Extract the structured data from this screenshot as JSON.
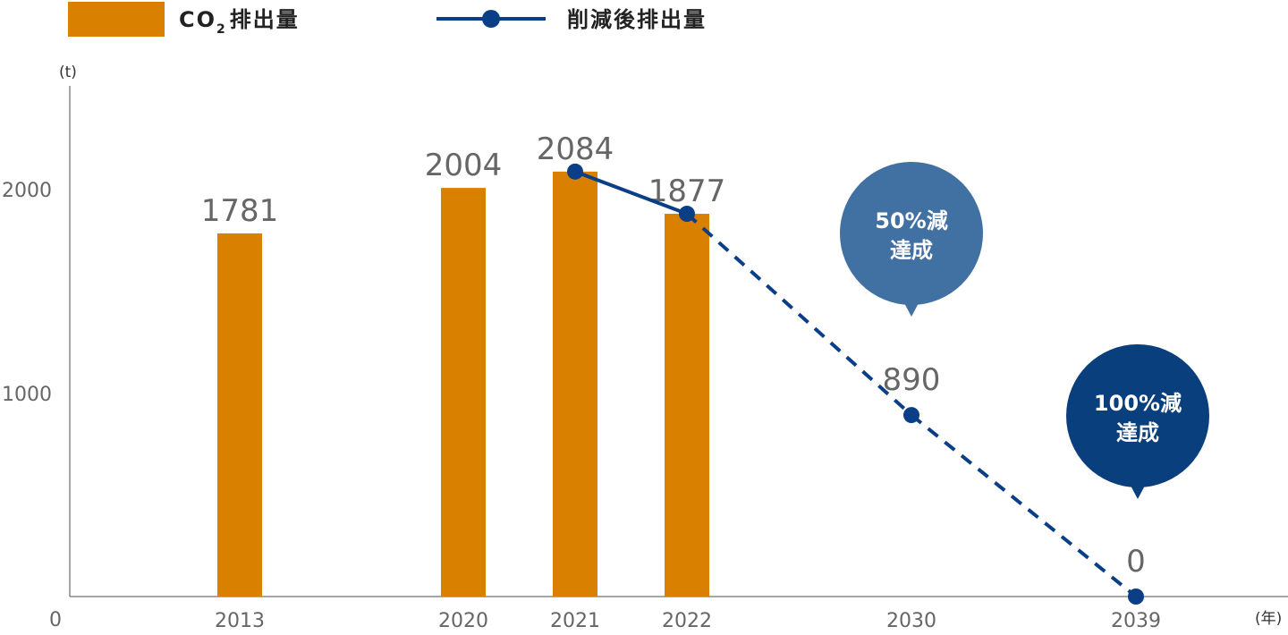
{
  "chart_data": {
    "type": "bar",
    "legend": {
      "bar_label_main": "CO",
      "bar_label_sub": "2",
      "bar_label_rest": "排出量",
      "line_label": "削減後排出量",
      "placement": "top-left"
    },
    "y_unit": "(t)",
    "x_unit": "(年)",
    "ylim": [
      0,
      2500
    ],
    "y_ticks": [
      {
        "value": 0,
        "label": "0"
      },
      {
        "value": 1000,
        "label": "1000"
      },
      {
        "value": 2000,
        "label": "2000"
      }
    ],
    "x": [
      2013,
      2020,
      2021,
      2022,
      2030,
      2039
    ],
    "x_labels": [
      "2013",
      "2020",
      "2021",
      "2022",
      "2030",
      "2039"
    ],
    "series": [
      {
        "name": "CO2排出量",
        "kind": "bar",
        "color": "#d98000",
        "points": [
          {
            "x": 2013,
            "value": 1781,
            "label": "1781"
          },
          {
            "x": 2020,
            "value": 2004,
            "label": "2004"
          },
          {
            "x": 2021,
            "value": 2084,
            "label": "2084"
          },
          {
            "x": 2022,
            "value": 1877,
            "label": "1877"
          }
        ]
      },
      {
        "name": "削減後排出量",
        "kind": "line",
        "color": "#0a3f87",
        "points": [
          {
            "x": 2021,
            "value": 2084,
            "style": "solid"
          },
          {
            "x": 2022,
            "value": 1877,
            "style": "solid"
          },
          {
            "x": 2030,
            "value": 890,
            "label": "890",
            "style": "dashed"
          },
          {
            "x": 2039,
            "value": 0,
            "label": "0",
            "style": "dashed"
          }
        ]
      }
    ],
    "callouts": [
      {
        "x": 2030,
        "line1": "50%減",
        "line2": "達成",
        "color": "#4170a3"
      },
      {
        "x": 2039,
        "line1": "100%減",
        "line2": "達成",
        "color": "#0a3f7e"
      }
    ],
    "grid": false,
    "axis_color": "#888888",
    "label_color": "#666666"
  }
}
